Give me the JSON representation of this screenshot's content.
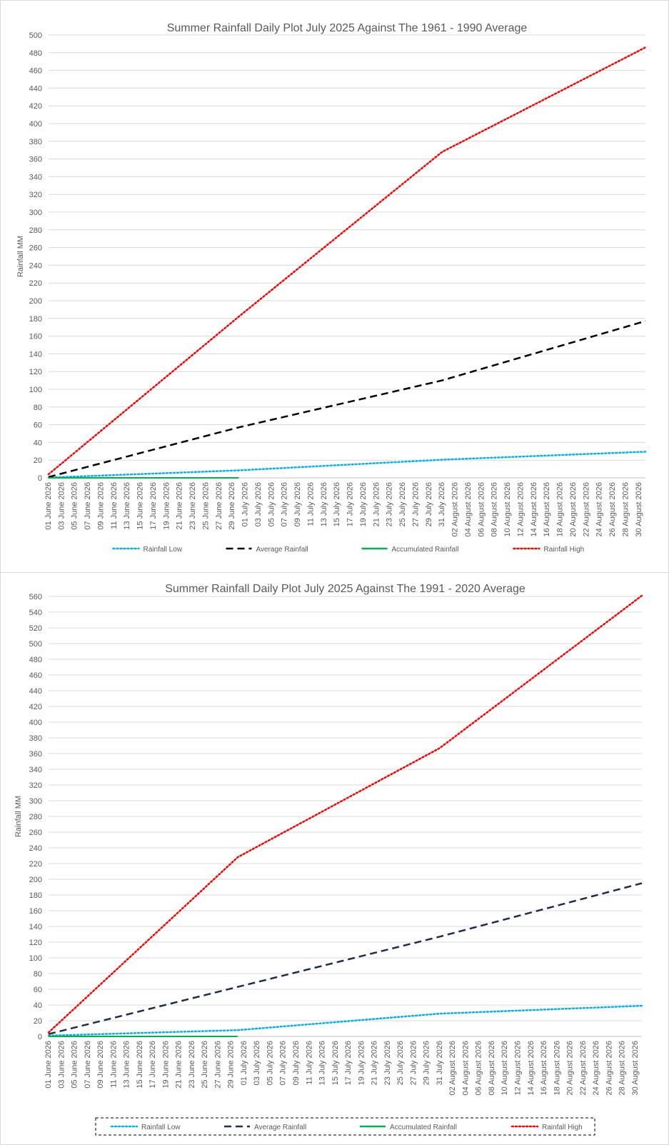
{
  "chart_data": [
    {
      "type": "line",
      "title": "Summer Rainfall Daily Plot July 2025 Against The 1961 - 1990 Average",
      "xlabel": "",
      "ylabel": "Rainfall MM",
      "ylim": [
        0,
        500
      ],
      "ystep": 20,
      "x_start": "2026-06-01",
      "x_end": "2026-08-31",
      "x_tick_labels": [
        "01 June 2026",
        "03 June 2026",
        "05 June 2026",
        "07 June 2026",
        "09 June 2026",
        "11 June 2026",
        "13 June 2026",
        "15 June 2026",
        "17 June 2026",
        "19 June 2026",
        "21 June 2026",
        "23 June 2026",
        "25 June 2026",
        "27 June 2026",
        "29 June 2026",
        "01 July 2026",
        "03 July 2026",
        "05 July 2026",
        "07 July 2026",
        "09 July 2026",
        "11 July 2026",
        "13 July 2026",
        "15 July 2026",
        "17 July 2026",
        "19 July 2026",
        "21 July 2026",
        "23 July 2026",
        "25 July 2026",
        "27 July 2026",
        "29 July 2026",
        "31 July 2026",
        "02 August 2026",
        "04 August 2026",
        "06 August 2026",
        "08 August 2026",
        "10 August 2026",
        "12 August 2026",
        "14 August 2026",
        "16 August 2026",
        "18 August 2026",
        "20 August 2026",
        "22 August 2026",
        "24 August 2026",
        "26 August 2026",
        "28 August 2026",
        "30 August 2026"
      ],
      "grid": true,
      "legend_position": "bottom",
      "legend_border": false,
      "series": [
        {
          "name": "Rainfall Low",
          "color": "#00b0f0",
          "style": "dotted",
          "points": [
            [
              "2026-06-01",
              0.3
            ],
            [
              "2026-06-30",
              8.5
            ],
            [
              "2026-07-31",
              20.5
            ],
            [
              "2026-08-31",
              29.5
            ]
          ]
        },
        {
          "name": "Average Rainfall",
          "color": "#000000",
          "style": "dashed",
          "points": [
            [
              "2026-06-01",
              1
            ],
            [
              "2026-06-30",
              57
            ],
            [
              "2026-07-31",
              110
            ],
            [
              "2026-08-31",
              177
            ]
          ]
        },
        {
          "name": "Accumulated Rainfall",
          "color": "#00b050",
          "style": "solid",
          "points": [
            [
              "2026-06-01",
              0
            ],
            [
              "2026-06-30",
              0
            ]
          ]
        },
        {
          "name": "Rainfall High",
          "color": "#ff0000",
          "style": "dotted",
          "points": [
            [
              "2026-06-01",
              4
            ],
            [
              "2026-06-30",
              182
            ],
            [
              "2026-07-31",
              368
            ],
            [
              "2026-08-31",
              486
            ]
          ]
        }
      ]
    },
    {
      "type": "line",
      "title": "Summer Rainfall Daily Plot July 2025 Against The 1991 - 2020 Average",
      "xlabel": "",
      "ylabel": "Rainfall MM",
      "ylim": [
        0,
        560
      ],
      "ystep": 20,
      "x_start": "2026-06-01",
      "x_end": "2026-08-31",
      "x_tick_labels": [
        "01 June 2026",
        "03 June 2026",
        "05 June 2026",
        "07 June 2026",
        "09 June 2026",
        "11 June 2026",
        "13 June 2026",
        "15 June 2026",
        "17 June 2026",
        "19 June 2026",
        "21 June 2026",
        "23 June 2026",
        "25 June 2026",
        "27 June 2026",
        "29 June 2026",
        "01 July 2026",
        "03 July 2026",
        "05 July 2026",
        "07 July 2026",
        "09 July 2026",
        "11 July 2026",
        "13 July 2026",
        "15 July 2026",
        "17 July 2026",
        "19 July 2026",
        "21 July 2026",
        "23 July 2026",
        "25 July 2026",
        "27 July 2026",
        "29 July 2026",
        "31 July 2026",
        "02 August 2026",
        "04 August 2026",
        "06 August 2026",
        "08 August 2026",
        "10 August 2026",
        "12 August 2026",
        "14 August 2026",
        "16 August 2026",
        "18 August 2026",
        "20 August 2026",
        "22 August 2026",
        "24 August 2026",
        "26 August 2026",
        "28 August 2026",
        "30 August 2026"
      ],
      "grid": true,
      "legend_position": "bottom",
      "legend_border": true,
      "series": [
        {
          "name": "Rainfall Low",
          "color": "#00b0f0",
          "style": "dotted",
          "points": [
            [
              "2026-06-01",
              1
            ],
            [
              "2026-06-30",
              8
            ],
            [
              "2026-07-31",
              29
            ],
            [
              "2026-08-31",
              39
            ]
          ]
        },
        {
          "name": "Average Rainfall",
          "color": "#1f2d4d",
          "style": "dashed",
          "points": [
            [
              "2026-06-01",
              3
            ],
            [
              "2026-06-30",
              63
            ],
            [
              "2026-07-31",
              127
            ],
            [
              "2026-08-31",
              195
            ]
          ]
        },
        {
          "name": "Accumulated Rainfall",
          "color": "#00b050",
          "style": "solid",
          "points": [
            [
              "2026-06-01",
              0
            ],
            [
              "2026-06-30",
              0
            ]
          ]
        },
        {
          "name": "Rainfall High",
          "color": "#ff0000",
          "style": "dotted",
          "points": [
            [
              "2026-06-01",
              5
            ],
            [
              "2026-06-30",
              228
            ],
            [
              "2026-07-31",
              367
            ],
            [
              "2026-08-31",
              561
            ]
          ]
        }
      ]
    }
  ]
}
